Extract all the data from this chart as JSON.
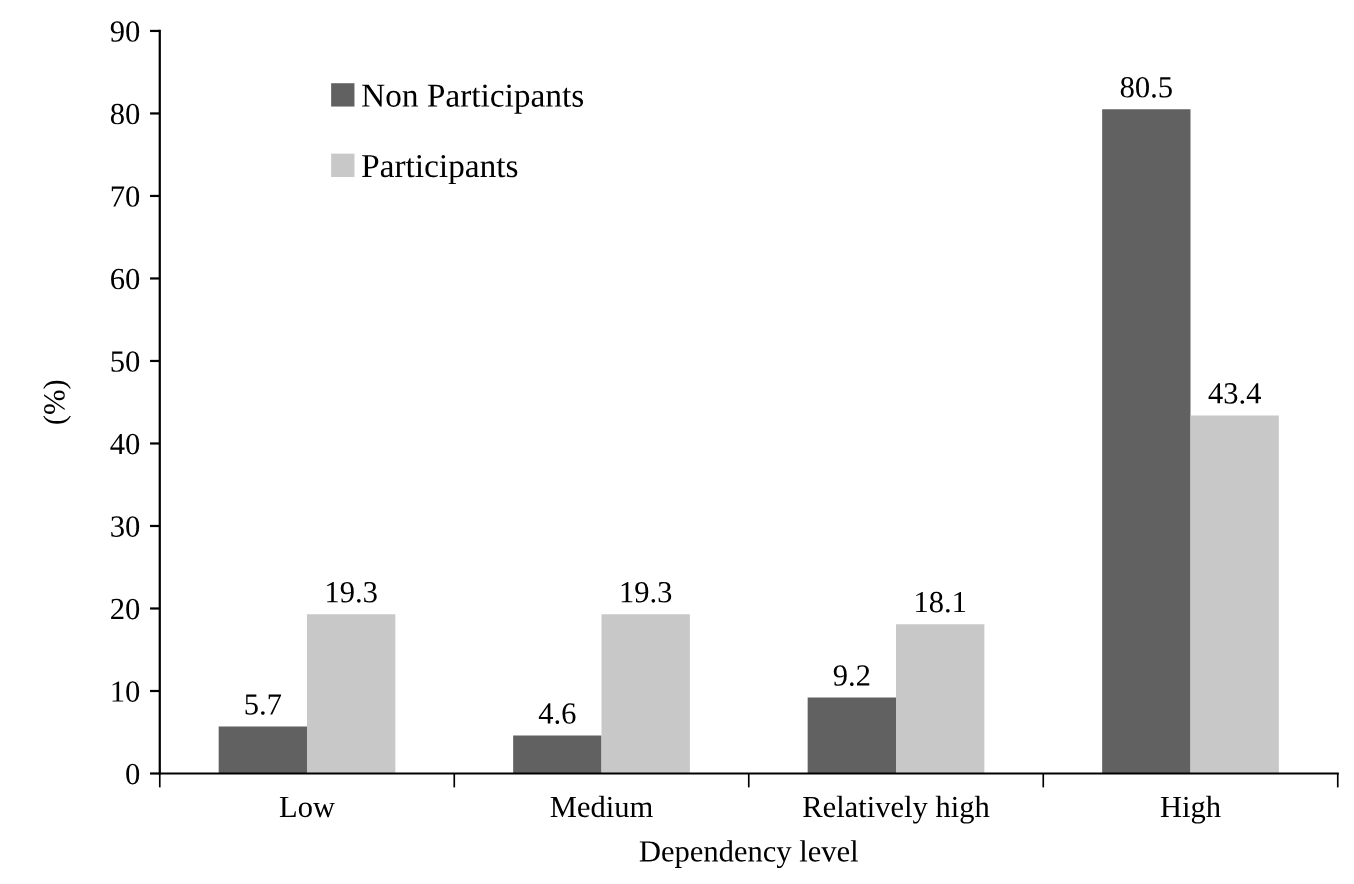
{
  "chart_data": {
    "type": "bar",
    "xlabel": "Dependency level",
    "ylabel": "(%)",
    "categories": [
      "Low",
      "Medium",
      "Relatively high",
      "High"
    ],
    "series": [
      {
        "name": "Non Participants",
        "color": "#616161",
        "values": [
          5.7,
          4.6,
          9.2,
          80.5
        ]
      },
      {
        "name": "Participants",
        "color": "#c8c8c8",
        "values": [
          19.3,
          19.3,
          18.1,
          43.4
        ]
      }
    ],
    "ylim": [
      0,
      90
    ],
    "yticks": [
      0,
      10,
      20,
      30,
      40,
      50,
      60,
      70,
      80,
      90
    ],
    "grid": false,
    "legend": "top left",
    "data_labels": true
  }
}
